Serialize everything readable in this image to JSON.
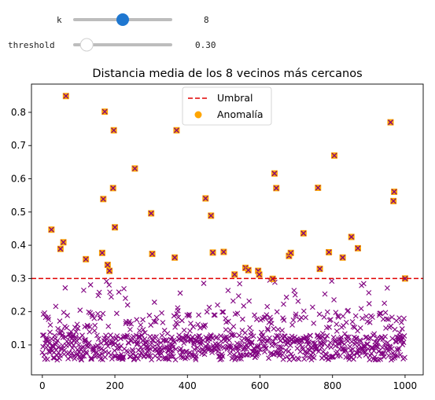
{
  "widgets": {
    "k": {
      "label": "k",
      "value": 8,
      "value_text": "8",
      "min": 1,
      "max": 15,
      "color": "#1f77d0"
    },
    "threshold": {
      "label": "threshold",
      "value": 0.3,
      "value_text": "0.30",
      "min": 0.2,
      "max": 1.0,
      "color": "#ffffff"
    }
  },
  "chart_data": {
    "type": "scatter",
    "title": "Distancia media de los 8 vecinos más cercanos",
    "xlabel": "",
    "ylabel": "",
    "xlim": [
      -30,
      1050
    ],
    "ylim": [
      0.01,
      0.885
    ],
    "xticks": [
      0,
      200,
      400,
      600,
      800,
      1000
    ],
    "yticks": [
      0.1,
      0.2,
      0.3,
      0.4,
      0.5,
      0.6,
      0.7,
      0.8
    ],
    "threshold": 0.3,
    "n_points": 1000,
    "grid": false,
    "legend_position": "upper center",
    "legend": [
      {
        "label": "Umbral",
        "kind": "dashed-line",
        "color": "#e00000"
      },
      {
        "label": "Anomalía",
        "kind": "dot",
        "color": "#ffa500"
      }
    ],
    "colors": {
      "point_marker": "#800080",
      "anomaly_fill": "#ffa500",
      "threshold_line": "#e00000"
    },
    "anomalies": [
      [
        25,
        0.447
      ],
      [
        50,
        0.389
      ],
      [
        58,
        0.409
      ],
      [
        65,
        0.849
      ],
      [
        120,
        0.358
      ],
      [
        165,
        0.377
      ],
      [
        168,
        0.539
      ],
      [
        172,
        0.802
      ],
      [
        180,
        0.341
      ],
      [
        185,
        0.323
      ],
      [
        195,
        0.572
      ],
      [
        197,
        0.746
      ],
      [
        200,
        0.454
      ],
      [
        255,
        0.631
      ],
      [
        300,
        0.496
      ],
      [
        303,
        0.374
      ],
      [
        365,
        0.363
      ],
      [
        370,
        0.746
      ],
      [
        450,
        0.541
      ],
      [
        465,
        0.489
      ],
      [
        470,
        0.378
      ],
      [
        500,
        0.38
      ],
      [
        530,
        0.312
      ],
      [
        560,
        0.332
      ],
      [
        568,
        0.325
      ],
      [
        595,
        0.323
      ],
      [
        598,
        0.312
      ],
      [
        635,
        0.299
      ],
      [
        640,
        0.616
      ],
      [
        645,
        0.572
      ],
      [
        680,
        0.368
      ],
      [
        685,
        0.377
      ],
      [
        720,
        0.436
      ],
      [
        760,
        0.573
      ],
      [
        765,
        0.329
      ],
      [
        790,
        0.379
      ],
      [
        805,
        0.67
      ],
      [
        828,
        0.363
      ],
      [
        852,
        0.425
      ],
      [
        870,
        0.391
      ],
      [
        960,
        0.77
      ],
      [
        968,
        0.533
      ],
      [
        970,
        0.561
      ],
      [
        1000,
        0.3
      ]
    ]
  }
}
